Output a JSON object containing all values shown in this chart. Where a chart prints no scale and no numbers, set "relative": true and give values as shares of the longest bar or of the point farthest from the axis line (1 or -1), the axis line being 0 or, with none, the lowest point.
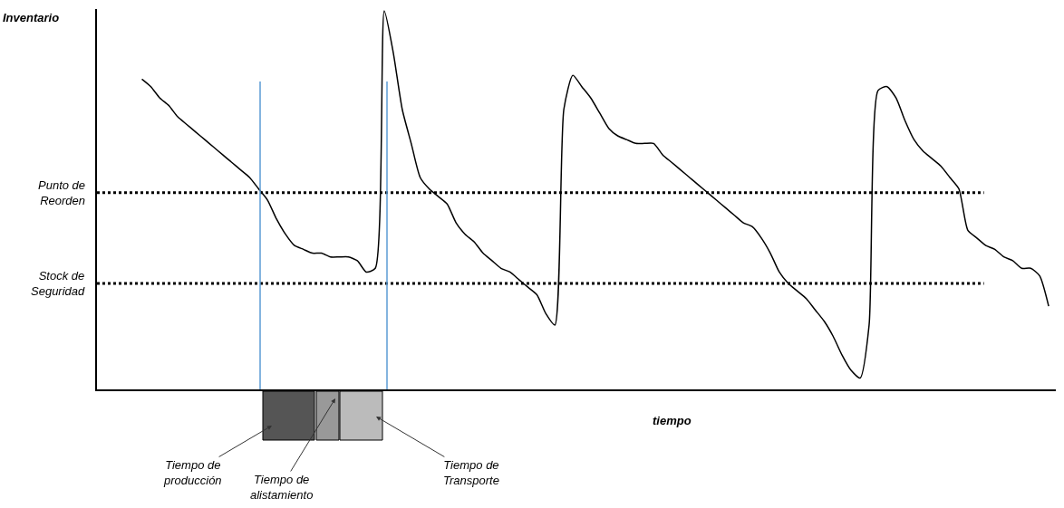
{
  "chart_data": {
    "type": "line",
    "relative": true,
    "xlabel": "tiempo",
    "color": "#000000",
    "legend": false,
    "marker": "none",
    "line_style": "solid",
    "categories": [
      null,
      null,
      null,
      null,
      null,
      null,
      null,
      null,
      null,
      null,
      null,
      null,
      null,
      null,
      null,
      null,
      null,
      null,
      null,
      null,
      null,
      null,
      null,
      null,
      null,
      null,
      null,
      null,
      null,
      null,
      null,
      null,
      null,
      null,
      null,
      null,
      null,
      null,
      null,
      null,
      null,
      null,
      null,
      null,
      null,
      null,
      null,
      null,
      null,
      null,
      null,
      null,
      null,
      null,
      null,
      null,
      null,
      null,
      null,
      null,
      null,
      null,
      null,
      null,
      null,
      null,
      null,
      null,
      null,
      null,
      null,
      null,
      null,
      null,
      null,
      null,
      null,
      null,
      null,
      null,
      null,
      null,
      null,
      null,
      null,
      null,
      null,
      null,
      null,
      null,
      null,
      null,
      null,
      null,
      null,
      null,
      null,
      null,
      null,
      null,
      null,
      null
    ],
    "values": [
      0.82,
      0.8,
      0.77,
      0.75,
      0.72,
      0.7,
      0.68,
      0.66,
      0.64,
      0.62,
      0.6,
      0.58,
      0.56,
      0.53,
      0.5,
      0.45,
      0.41,
      0.38,
      0.37,
      0.36,
      0.36,
      0.35,
      0.35,
      0.35,
      0.34,
      0.31,
      0.32,
      1.0,
      0.89,
      0.74,
      0.65,
      0.56,
      0.53,
      0.51,
      0.49,
      0.44,
      0.41,
      0.39,
      0.36,
      0.34,
      0.32,
      0.31,
      0.29,
      0.27,
      0.25,
      0.2,
      0.17,
      0.74,
      0.83,
      0.8,
      0.77,
      0.73,
      0.69,
      0.67,
      0.66,
      0.65,
      0.65,
      0.65,
      0.62,
      0.6,
      0.58,
      0.56,
      0.54,
      0.52,
      0.5,
      0.48,
      0.46,
      0.44,
      0.43,
      0.4,
      0.36,
      0.31,
      0.28,
      0.26,
      0.24,
      0.21,
      0.18,
      0.14,
      0.09,
      0.05,
      0.03,
      0.17,
      0.79,
      0.8,
      0.77,
      0.71,
      0.66,
      0.63,
      0.61,
      0.59,
      0.56,
      0.53,
      0.42,
      0.4,
      0.38,
      0.37,
      0.35,
      0.34,
      0.32,
      0.32,
      0.3,
      0.22
    ],
    "ref_lines": [
      {
        "axis": "y",
        "value": 0.52,
        "label": "Punto de Reorden",
        "color": "#000000",
        "line_style": "dotted"
      },
      {
        "axis": "y",
        "value": 0.28,
        "label": "Stock de Seguridad",
        "color": "#000000",
        "line_style": "dotted"
      }
    ],
    "annotations": [
      "Inventario",
      "Tiempo de producción",
      "Tiempo de alistamiento",
      "Tiempo de Transporte"
    ]
  }
}
